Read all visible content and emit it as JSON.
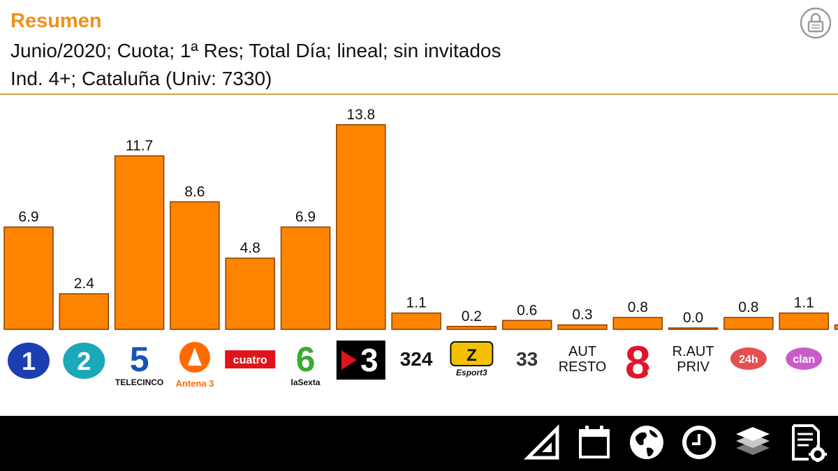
{
  "header": {
    "title": "Resumen",
    "subtitle_line1": "Junio/2020; Cuota; 1ª Res; Total Día; lineal; sin invitados",
    "subtitle_line2": "Ind. 4+; Cataluña (Univ: 7330)"
  },
  "colors": {
    "accent": "#f0901a",
    "bar": "#ff8400",
    "bar_stroke": "#8a3c00",
    "rule": "#d9a24a",
    "footer": "#000000"
  },
  "chart_data": {
    "type": "bar",
    "title": "",
    "xlabel": "",
    "ylabel": "",
    "ylim": [
      0,
      14.4
    ],
    "grid": false,
    "categories": [
      "La 1",
      "La 2",
      "Telecinco",
      "Antena 3",
      "Cuatro",
      "laSexta",
      "TV3",
      "3/24",
      "Esport3",
      "Super3/33",
      "AUT RESTO",
      "8tv",
      "R.AUT PRIV",
      "24h",
      "Clan",
      ""
    ],
    "category_logos": [
      {
        "name": "la1-logo",
        "text": "1",
        "kind": "badge",
        "color": "#1b3fb0"
      },
      {
        "name": "la2-logo",
        "text": "2",
        "kind": "badge",
        "color": "#19a9b8"
      },
      {
        "name": "telecinco-logo",
        "text": "5",
        "sub": "TELECINCO",
        "kind": "big",
        "color": "#1a53b5"
      },
      {
        "name": "antena3-logo",
        "text": "Antena 3",
        "kind": "antena",
        "color": "#ff6a00"
      },
      {
        "name": "cuatro-logo",
        "text": "cuatro",
        "kind": "box",
        "color": "#e0151b"
      },
      {
        "name": "lasexta-logo",
        "text": "6",
        "sub": "laSexta",
        "kind": "big",
        "color": "#3aa935"
      },
      {
        "name": "tv3-logo",
        "text": "3",
        "kind": "dark",
        "color": "#000000"
      },
      {
        "name": "canal324-logo",
        "text": "324",
        "kind": "plain",
        "color": "#111111"
      },
      {
        "name": "esport3-logo",
        "text": "Esport3",
        "kind": "esport",
        "color": "#f2c200"
      },
      {
        "name": "super3-33-logo",
        "text": "33",
        "kind": "plain",
        "color": "#333333"
      },
      {
        "name": "aut-resto-label",
        "text": "AUT\nRESTO",
        "kind": "label",
        "color": "#111111"
      },
      {
        "name": "8tv-logo",
        "text": "8",
        "sub": "tv",
        "kind": "big8",
        "color": "#e0152a"
      },
      {
        "name": "raut-priv-label",
        "text": "R.AUT\nPRIV",
        "kind": "label",
        "color": "#111111"
      },
      {
        "name": "canal24h-logo",
        "text": "24h",
        "kind": "pill",
        "color": "#e03030"
      },
      {
        "name": "clan-logo",
        "text": "clan",
        "kind": "pill",
        "color": "#c040c0"
      },
      {
        "name": "partial-logo",
        "text": "",
        "kind": "partial",
        "color": "#f08030"
      }
    ],
    "values": [
      6.9,
      2.4,
      11.7,
      8.6,
      4.8,
      6.9,
      13.8,
      1.1,
      0.2,
      0.6,
      0.3,
      0.8,
      0.0,
      0.8,
      1.1,
      0.3
    ],
    "data_labels": [
      "6.9",
      "2.4",
      "11.7",
      "8.6",
      "4.8",
      "6.9",
      "13.8",
      "1.1",
      "0.2",
      "0.6",
      "0.3",
      "0.8",
      "0.0",
      "0.8",
      "1.1",
      ""
    ]
  },
  "toolbar": {
    "icons": [
      "ruler-icon",
      "calendar-icon",
      "globe-icon",
      "clock-icon",
      "layers-icon",
      "report-settings-icon"
    ]
  }
}
